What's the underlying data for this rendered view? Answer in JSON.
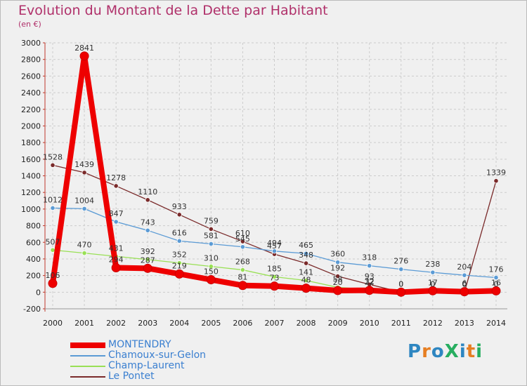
{
  "title": "Evolution du Montant de la Dette par Habitant",
  "unit_label": "(en €)",
  "brand": "ProXiti",
  "chart_data": {
    "type": "line",
    "title": "Evolution du Montant de la Dette par Habitant",
    "ylabel": "(en €)",
    "xlabel": "",
    "ylim": [
      -200,
      3000
    ],
    "y_ticks": [
      -200,
      0,
      200,
      400,
      600,
      800,
      1000,
      1200,
      1400,
      1600,
      1800,
      2000,
      2200,
      2400,
      2600,
      2800,
      3000
    ],
    "categories": [
      "2000",
      "2001",
      "2002",
      "2003",
      "2004",
      "2005",
      "2006",
      "2007",
      "2008",
      "2009",
      "2010",
      "2011",
      "2012",
      "2013",
      "2014"
    ],
    "grid": true,
    "legend_position": "bottom-left",
    "series": [
      {
        "name": "MONTENDRY",
        "color": "#ee0000",
        "values": [
          106,
          2841,
          294,
          287,
          219,
          150,
          81,
          73,
          48,
          20,
          22,
          0,
          17,
          6,
          16
        ],
        "labels": [
          "106",
          "2841",
          "294",
          "287",
          "219",
          "150",
          "81",
          "73",
          "48",
          "20",
          "22",
          "0",
          "17",
          "6",
          "16"
        ]
      },
      {
        "name": "Chamoux-sur-Gelon",
        "color": "#5b9bd5",
        "values": [
          1012,
          1004,
          847,
          743,
          616,
          581,
          545,
          494,
          465,
          360,
          318,
          276,
          238,
          204,
          176
        ],
        "labels": [
          "1012",
          "1004",
          "847",
          "743",
          "616",
          "581",
          "545",
          "494",
          "465",
          "360",
          "318",
          "276",
          "238",
          "204",
          "176"
        ]
      },
      {
        "name": "Champ-Laurent",
        "color": "#99e055",
        "values": [
          507,
          470,
          431,
          392,
          352,
          310,
          268,
          185,
          141,
          58,
          32,
          0,
          0,
          0,
          0
        ],
        "labels": [
          "507",
          "470",
          "431",
          "392",
          "352",
          "310",
          "268",
          "185",
          "141",
          "58",
          "32",
          "0",
          "0",
          "0",
          "0"
        ]
      },
      {
        "name": "Le Pontet",
        "color": "#7a2a2a",
        "values": [
          1528,
          1439,
          1278,
          1110,
          933,
          759,
          610,
          457,
          348,
          192,
          93,
          0,
          0,
          0,
          1339
        ],
        "labels": [
          "1528",
          "1439",
          "1278",
          "1110",
          "933",
          "759",
          "610",
          "457",
          "348",
          "192",
          "93",
          "0",
          "0",
          "0",
          "1339"
        ]
      }
    ]
  }
}
